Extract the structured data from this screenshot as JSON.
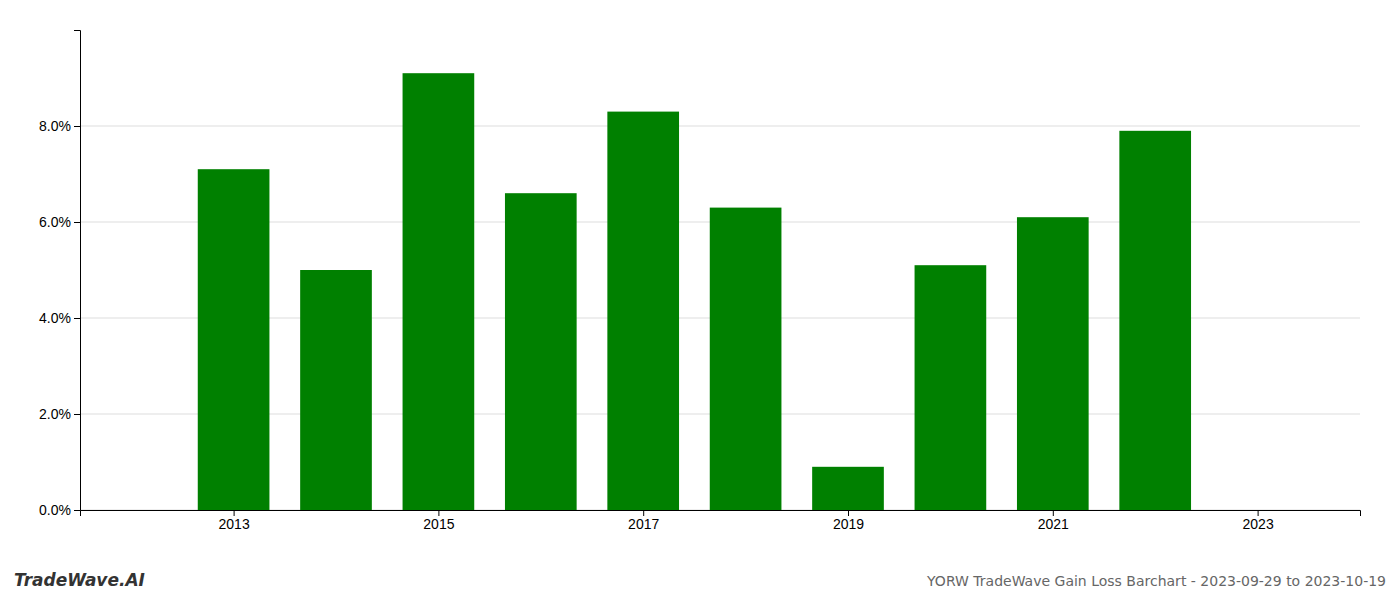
{
  "chart_data": {
    "type": "bar",
    "x": [
      2013,
      2014,
      2015,
      2016,
      2017,
      2018,
      2019,
      2020,
      2021,
      2022
    ],
    "values": [
      0.071,
      0.05,
      0.091,
      0.066,
      0.083,
      0.063,
      0.009,
      0.051,
      0.061,
      0.079
    ],
    "color": "#008000",
    "xlim": [
      2011.5,
      2024.0
    ],
    "xticks": [
      2013,
      2015,
      2017,
      2019,
      2021,
      2023
    ],
    "ylim": [
      0,
      0.1
    ],
    "yticks": [
      {
        "value": 0.0,
        "label": "0.0%"
      },
      {
        "value": 0.02,
        "label": "2.0%"
      },
      {
        "value": 0.04,
        "label": "4.0%"
      },
      {
        "value": 0.06,
        "label": "6.0%"
      },
      {
        "value": 0.08,
        "label": "8.0%"
      }
    ],
    "grid": true,
    "annotations": [
      "TradeWave.AI",
      "YORW TradeWave Gain Loss Barchart - 2023-09-29 to 2023-10-19"
    ]
  }
}
